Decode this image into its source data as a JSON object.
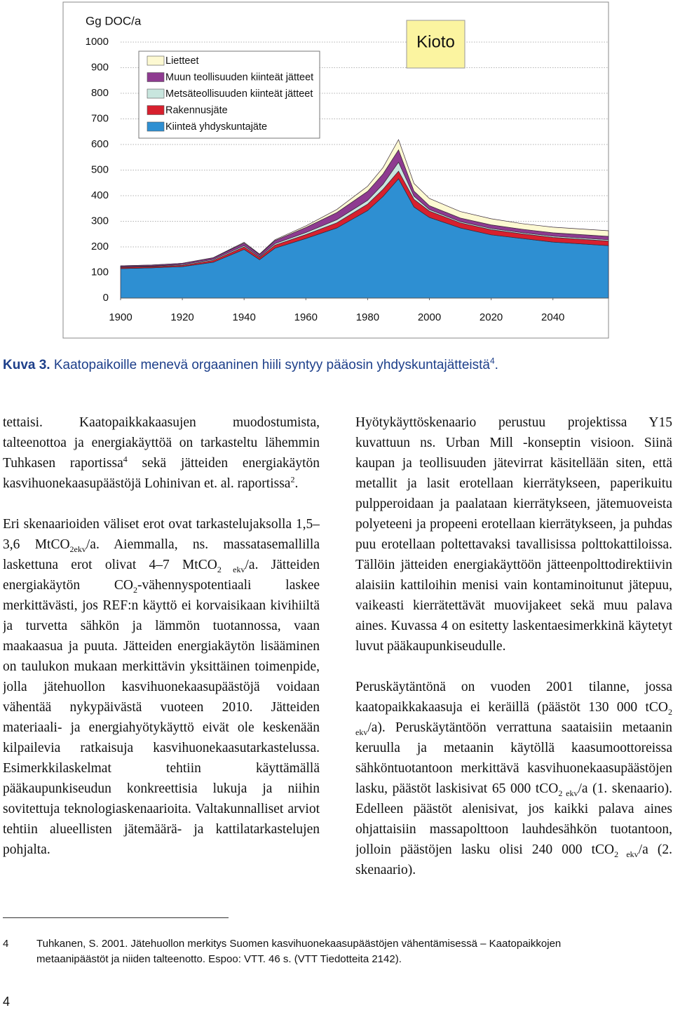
{
  "chart_data": {
    "type": "area",
    "stacked": true,
    "y_label": "Gg DOC/a",
    "annotation": "Kioto",
    "x": [
      1900,
      1910,
      1920,
      1930,
      1940,
      1945,
      1950,
      1960,
      1970,
      1980,
      1985,
      1990,
      1995,
      2000,
      2010,
      2020,
      2030,
      2040,
      2058
    ],
    "series": [
      {
        "name": "Lietteet",
        "color": "#fdf9d2",
        "values": [
          0,
          0,
          0,
          1,
          3,
          2,
          3,
          6,
          12,
          20,
          25,
          40,
          30,
          28,
          25,
          24,
          22,
          22,
          22
        ]
      },
      {
        "name": "Muun teollisuuden kiinteät jätteet",
        "color": "#8e3b90",
        "values": [
          4,
          4,
          5,
          6,
          10,
          8,
          12,
          20,
          28,
          35,
          40,
          48,
          20,
          15,
          14,
          14,
          13,
          13,
          13
        ]
      },
      {
        "name": "Metsäteollisuuden kiinteät jätteet",
        "color": "#c8e6de",
        "values": [
          2,
          2,
          3,
          4,
          5,
          4,
          6,
          8,
          12,
          15,
          20,
          35,
          12,
          6,
          5,
          5,
          5,
          5,
          5
        ]
      },
      {
        "name": "Rakennusjäte",
        "color": "#d7202e",
        "values": [
          5,
          5,
          5,
          7,
          10,
          8,
          12,
          15,
          20,
          25,
          28,
          30,
          30,
          25,
          20,
          20,
          18,
          18,
          18
        ]
      },
      {
        "name": "Kiinteä yhdyskuntajäte",
        "color": "#2e8fd2",
        "values": [
          115,
          118,
          123,
          140,
          190,
          150,
          195,
          233,
          274,
          342,
          397,
          466,
          356,
          315,
          274,
          247,
          233,
          219,
          205
        ]
      }
    ],
    "xlim": [
      1900,
      2058
    ],
    "xticks": [
      1900,
      1920,
      1940,
      1960,
      1980,
      2000,
      2020,
      2040
    ],
    "ylim": [
      0,
      1000
    ],
    "yticks": [
      0,
      100,
      200,
      300,
      400,
      500,
      600,
      700,
      800,
      900,
      1000
    ],
    "grid": true,
    "legend": "top-left"
  },
  "caption": [
    {
      "b": "Kuva 3."
    },
    " Kaatopaikoille menevä orgaaninen hiili syntyy pääosin yhdyskuntajätteistä",
    {
      "sup": "4"
    },
    "."
  ],
  "left": [
    [
      "tettaisi. Kaatopaikkakaasujen muodostumista, talteenottoa ja energiakäyttöä on tarkasteltu lähemmin Tuhkasen raportissa",
      {
        "sup": "4"
      },
      " sekä jätteiden energiakäytön kasvihuonekaasupäästöjä Lohinivan et. al. raportissa",
      {
        "sup": "2"
      },
      "."
    ],
    [
      "Eri skenaarioiden väliset erot ovat tarkastelujaksolla 1,5–3,6 MtCO",
      {
        "sub": "2ekv"
      },
      "/a. Aiemmalla, ns. massatasemallilla laskettuna erot olivat 4–7 MtCO",
      {
        "sub": "2 ekv"
      },
      "/a. Jätteiden energiakäytön CO",
      {
        "sub": "2"
      },
      "-vähennyspotentiaali laskee merkittävästi, jos REF:n käyttö ei korvaisikaan kivihiiltä ja turvetta sähkön ja lämmön tuotannossa, vaan maakaasua ja puuta. Jätteiden energiakäytön lisääminen on taulukon mukaan merkittävin yksittäinen toimenpide, jolla jätehuollon kasvihuonekaasupäästöjä voidaan vähentää nykypäivästä vuoteen 2010. Jätteiden materiaali- ja energiahyötykäyttö eivät ole keskenään kilpailevia ratkaisuja kasvihuonekaasutarkastelussa. Esimerkkilaskelmat tehtiin käyttämällä pääkaupunkiseudun konkreettisia lukuja ja niihin sovitettuja teknologiaskenaarioita. Valtakunnalliset arviot tehtiin alueellisten jätemäärä- ja kattilatarkastelujen pohjalta."
    ]
  ],
  "right": [
    [
      "Hyötykäyttöskenaario perustuu projektissa Y15 kuvattuun ns. Urban Mill -konseptin visioon. Siinä kaupan ja teollisuuden jätevirrat käsitellään siten, että metallit ja lasit erotellaan kierrätykseen, paperikuitu pulpperoidaan ja paalataan kierrätykseen, jätemuoveista polyeteeni ja propeeni erotellaan kierrätykseen, ja puhdas puu erotellaan poltettavaksi tavallisissa polttokattiloissa. Tällöin jätteiden energiakäyttöön jätteenpolttodirektiivin alaisiin kattiloihin menisi vain kontaminoitunut jätepuu, vaikeasti kierrätettävät muovijakeet sekä muu palava aines. Kuvassa 4 on esitetty laskentaesimerkkinä käytetyt luvut pääkaupunkiseudulle."
    ],
    [
      "Peruskäytäntönä on vuoden 2001 tilanne, jossa kaatopaikkakaasuja ei keräillä (päästöt 130 000 tCO",
      {
        "sub": "2 ekv"
      },
      "/a). Peruskäytäntöön verrattuna saataisiin metaanin keruulla ja metaanin käytöllä kaasumoottoreissa sähköntuotantoon merkittävä kasvihuonekaasupäästöjen lasku, päästöt laskisivat 65 000 tCO",
      {
        "sub": "2 ekv"
      },
      "/a (1. skenaario). Edelleen päästöt alenisivat, jos kaikki palava aines ohjattaisiin massapolttoon lauhdesähkön tuotantoon, jolloin päästöjen lasku olisi 240 000 tCO",
      {
        "sub": "2 ekv"
      },
      "/a (2. skenaario)."
    ]
  ],
  "footnote": {
    "number": "4",
    "text": "Tuhkanen, S. 2001. Jätehuollon merkitys Suomen kasvihuonekaasupäästöjen vähentämisessä – Kaatopaikkojen metaanipäästöt ja niiden talteenotto. Espoo: VTT. 46 s. (VTT Tiedotteita 2142)."
  },
  "page_number": "4"
}
